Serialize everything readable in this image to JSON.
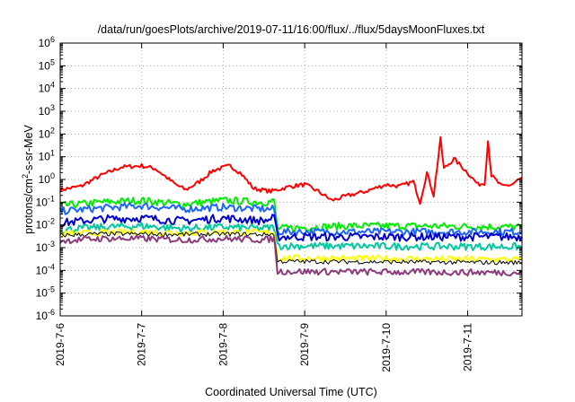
{
  "chart_data": {
    "type": "line",
    "title": "/data/run/goesPlots/archive/2019-07-11/16:00/flux/../flux/5daysMoonFluxes.txt",
    "xlabel": "Coordinated Universal Time (UTC)",
    "ylabel": {
      "pre": "protons/cm",
      "sup": "2",
      "post": "-s-sr-MeV"
    },
    "y_scale": "log",
    "ylim_exp": [
      -6,
      6
    ],
    "y_ticks": [
      {
        "exp": -6,
        "base": "10",
        "sup": "-6"
      },
      {
        "exp": -5,
        "base": "10",
        "sup": "-5"
      },
      {
        "exp": -4,
        "base": "10",
        "sup": "-4"
      },
      {
        "exp": -3,
        "base": "10",
        "sup": "-3"
      },
      {
        "exp": -2,
        "base": "10",
        "sup": "-2"
      },
      {
        "exp": -1,
        "base": "10",
        "sup": "-1"
      },
      {
        "exp": 0,
        "base": "10",
        "sup": "0"
      },
      {
        "exp": 1,
        "base": "10",
        "sup": "1"
      },
      {
        "exp": 2,
        "base": "10",
        "sup": "2"
      },
      {
        "exp": 3,
        "base": "10",
        "sup": "3"
      },
      {
        "exp": 4,
        "base": "10",
        "sup": "4"
      },
      {
        "exp": 5,
        "base": "10",
        "sup": "5"
      },
      {
        "exp": 6,
        "base": "10",
        "sup": "6"
      }
    ],
    "x_start": "2019-07-06",
    "x_end": "2019-07-11 16:00",
    "x_ticks": [
      "2019-7-6",
      "2019-7-7",
      "2019-7-8",
      "2019-7-9",
      "2019-7-10",
      "2019-7-11"
    ],
    "grid": true,
    "series": [
      {
        "color": "#ff0000",
        "width": 2,
        "noise": 0.09,
        "points": [
          [
            "2019-07-06 00:00",
            0.35
          ],
          [
            "2019-07-06 06:00",
            0.5
          ],
          [
            "2019-07-06 12:00",
            1.5
          ],
          [
            "2019-07-06 18:00",
            3.5
          ],
          [
            "2019-07-07 00:00",
            4.0
          ],
          [
            "2019-07-07 04:00",
            3.0
          ],
          [
            "2019-07-07 10:00",
            0.6
          ],
          [
            "2019-07-07 13:00",
            0.35
          ],
          [
            "2019-07-07 17:00",
            0.8
          ],
          [
            "2019-07-07 21:00",
            2.5
          ],
          [
            "2019-07-08 02:00",
            4.0
          ],
          [
            "2019-07-08 05:00",
            2.0
          ],
          [
            "2019-07-08 09:00",
            0.4
          ],
          [
            "2019-07-08 14:00",
            0.3
          ],
          [
            "2019-07-08 20:00",
            0.5
          ],
          [
            "2019-07-09 00:00",
            0.6
          ],
          [
            "2019-07-09 04:00",
            0.3
          ],
          [
            "2019-07-09 08:00",
            0.12
          ],
          [
            "2019-07-09 13:00",
            0.2
          ],
          [
            "2019-07-09 18:00",
            0.3
          ],
          [
            "2019-07-10 00:00",
            0.6
          ],
          [
            "2019-07-10 04:00",
            0.5
          ],
          [
            "2019-07-10 08:00",
            0.8
          ],
          [
            "2019-07-10 10:00",
            0.1
          ],
          [
            "2019-07-10 12:00",
            2.0
          ],
          [
            "2019-07-10 14:00",
            0.2
          ],
          [
            "2019-07-10 16:00",
            60
          ],
          [
            "2019-07-10 17:00",
            3.0
          ],
          [
            "2019-07-10 20:00",
            8.0
          ],
          [
            "2019-07-11 00:00",
            2.0
          ],
          [
            "2019-07-11 03:00",
            0.6
          ],
          [
            "2019-07-11 05:00",
            0.7
          ],
          [
            "2019-07-11 06:00",
            50
          ],
          [
            "2019-07-11 07:00",
            1.5
          ],
          [
            "2019-07-11 10:00",
            0.5
          ],
          [
            "2019-07-11 13:00",
            0.6
          ],
          [
            "2019-07-11 16:00",
            1.2
          ]
        ]
      },
      {
        "color": "#00ee00",
        "width": 2,
        "noise": 0.16,
        "points": [
          [
            "2019-07-06 00:00",
            0.07
          ],
          [
            "2019-07-06 12:00",
            0.1
          ],
          [
            "2019-07-07 00:00",
            0.12
          ],
          [
            "2019-07-07 12:00",
            0.08
          ],
          [
            "2019-07-08 00:00",
            0.12
          ],
          [
            "2019-07-08 12:00",
            0.1
          ],
          [
            "2019-07-08 15:00",
            0.11
          ],
          [
            "2019-07-08 16:00",
            0.007
          ],
          [
            "2019-07-09 12:00",
            0.009
          ],
          [
            "2019-07-10 12:00",
            0.009
          ],
          [
            "2019-07-11 16:00",
            0.008
          ]
        ]
      },
      {
        "color": "#1a66ff",
        "width": 2,
        "noise": 0.16,
        "points": [
          [
            "2019-07-06 00:00",
            0.04
          ],
          [
            "2019-07-06 12:00",
            0.055
          ],
          [
            "2019-07-07 00:00",
            0.07
          ],
          [
            "2019-07-07 12:00",
            0.05
          ],
          [
            "2019-07-08 00:00",
            0.06
          ],
          [
            "2019-07-08 12:00",
            0.05
          ],
          [
            "2019-07-08 15:00",
            0.05
          ],
          [
            "2019-07-08 16:00",
            0.005
          ],
          [
            "2019-07-11 16:00",
            0.005
          ]
        ]
      },
      {
        "color": "#0000cc",
        "width": 2,
        "noise": 0.18,
        "points": [
          [
            "2019-07-06 00:00",
            0.012
          ],
          [
            "2019-07-06 12:00",
            0.018
          ],
          [
            "2019-07-07 00:00",
            0.02
          ],
          [
            "2019-07-07 12:00",
            0.015
          ],
          [
            "2019-07-08 00:00",
            0.02
          ],
          [
            "2019-07-08 12:00",
            0.015
          ],
          [
            "2019-07-08 15:00",
            0.02
          ],
          [
            "2019-07-08 16:00",
            0.003
          ],
          [
            "2019-07-11 16:00",
            0.003
          ]
        ]
      },
      {
        "color": "#00c8a0",
        "width": 2,
        "noise": 0.16,
        "points": [
          [
            "2019-07-06 00:00",
            0.006
          ],
          [
            "2019-07-06 12:00",
            0.008
          ],
          [
            "2019-07-07 00:00",
            0.009
          ],
          [
            "2019-07-07 12:00",
            0.007
          ],
          [
            "2019-07-08 00:00",
            0.008
          ],
          [
            "2019-07-08 12:00",
            0.007
          ],
          [
            "2019-07-08 15:00",
            0.008
          ],
          [
            "2019-07-08 16:00",
            0.0012
          ],
          [
            "2019-07-11 16:00",
            0.0011
          ]
        ]
      },
      {
        "color": "#ffff00",
        "width": 2,
        "noise": 0.14,
        "points": [
          [
            "2019-07-06 00:00",
            0.004
          ],
          [
            "2019-07-06 12:00",
            0.0045
          ],
          [
            "2019-07-07 00:00",
            0.005
          ],
          [
            "2019-07-07 12:00",
            0.0045
          ],
          [
            "2019-07-08 00:00",
            0.005
          ],
          [
            "2019-07-08 12:00",
            0.0045
          ],
          [
            "2019-07-08 15:00",
            0.005
          ],
          [
            "2019-07-08 16:00",
            0.00035
          ],
          [
            "2019-07-11 16:00",
            0.0003
          ]
        ]
      },
      {
        "color": "#000000",
        "width": 1,
        "noise": 0.1,
        "points": [
          [
            "2019-07-06 00:00",
            0.0035
          ],
          [
            "2019-07-06 12:00",
            0.004
          ],
          [
            "2019-07-07 00:00",
            0.004
          ],
          [
            "2019-07-07 12:00",
            0.0038
          ],
          [
            "2019-07-08 00:00",
            0.004
          ],
          [
            "2019-07-08 12:00",
            0.0038
          ],
          [
            "2019-07-08 15:00",
            0.004
          ],
          [
            "2019-07-08 16:00",
            0.00025
          ],
          [
            "2019-07-11 16:00",
            0.00022
          ]
        ]
      },
      {
        "color": "#8b3a7a",
        "width": 2,
        "noise": 0.14,
        "points": [
          [
            "2019-07-06 00:00",
            0.002
          ],
          [
            "2019-07-06 12:00",
            0.0025
          ],
          [
            "2019-07-07 00:00",
            0.0025
          ],
          [
            "2019-07-07 12:00",
            0.0022
          ],
          [
            "2019-07-08 00:00",
            0.0025
          ],
          [
            "2019-07-08 12:00",
            0.0022
          ],
          [
            "2019-07-08 15:00",
            0.0025
          ],
          [
            "2019-07-08 16:00",
            9e-05
          ],
          [
            "2019-07-11 16:00",
            8e-05
          ]
        ]
      }
    ]
  }
}
